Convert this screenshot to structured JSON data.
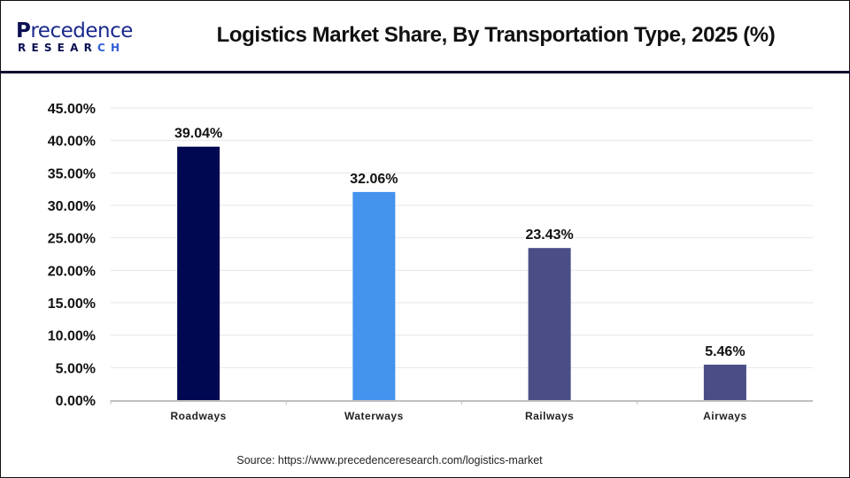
{
  "logo": {
    "brand_first_letter": "P",
    "brand_rest": "recedence",
    "subtitle_main": "RESEAR",
    "subtitle_accent": "CH"
  },
  "header": {
    "title": "Logistics Market Share, By Transportation Type, 2025 (%)"
  },
  "source": "Source: https://www.precedenceresearch.com/logistics-market",
  "colors": {
    "roadways": "#000852",
    "waterways": "#4493ED",
    "railways": "#4B4D87",
    "airways": "#4B4D87",
    "gridline": "#e6e6e6",
    "axis": "#bfbfbf"
  },
  "chart_data": {
    "type": "bar",
    "title": "Logistics Market Share, By Transportation Type, 2025 (%)",
    "xlabel": "",
    "ylabel": "",
    "categories": [
      "Roadways",
      "Waterways",
      "Railways",
      "Airways"
    ],
    "values": [
      39.04,
      32.06,
      23.43,
      5.46
    ],
    "data_labels": [
      "39.04%",
      "32.06%",
      "23.43%",
      "5.46%"
    ],
    "bar_colors": [
      "#000852",
      "#4493ED",
      "#4B4D87",
      "#4B4D87"
    ],
    "ylim": [
      0,
      45
    ],
    "yticks": [
      0,
      5,
      10,
      15,
      20,
      25,
      30,
      35,
      40,
      45
    ],
    "ytick_labels": [
      "0.00%",
      "5.00%",
      "10.00%",
      "15.00%",
      "20.00%",
      "25.00%",
      "30.00%",
      "35.00%",
      "40.00%",
      "45.00%"
    ],
    "grid": true,
    "legend": "none"
  }
}
